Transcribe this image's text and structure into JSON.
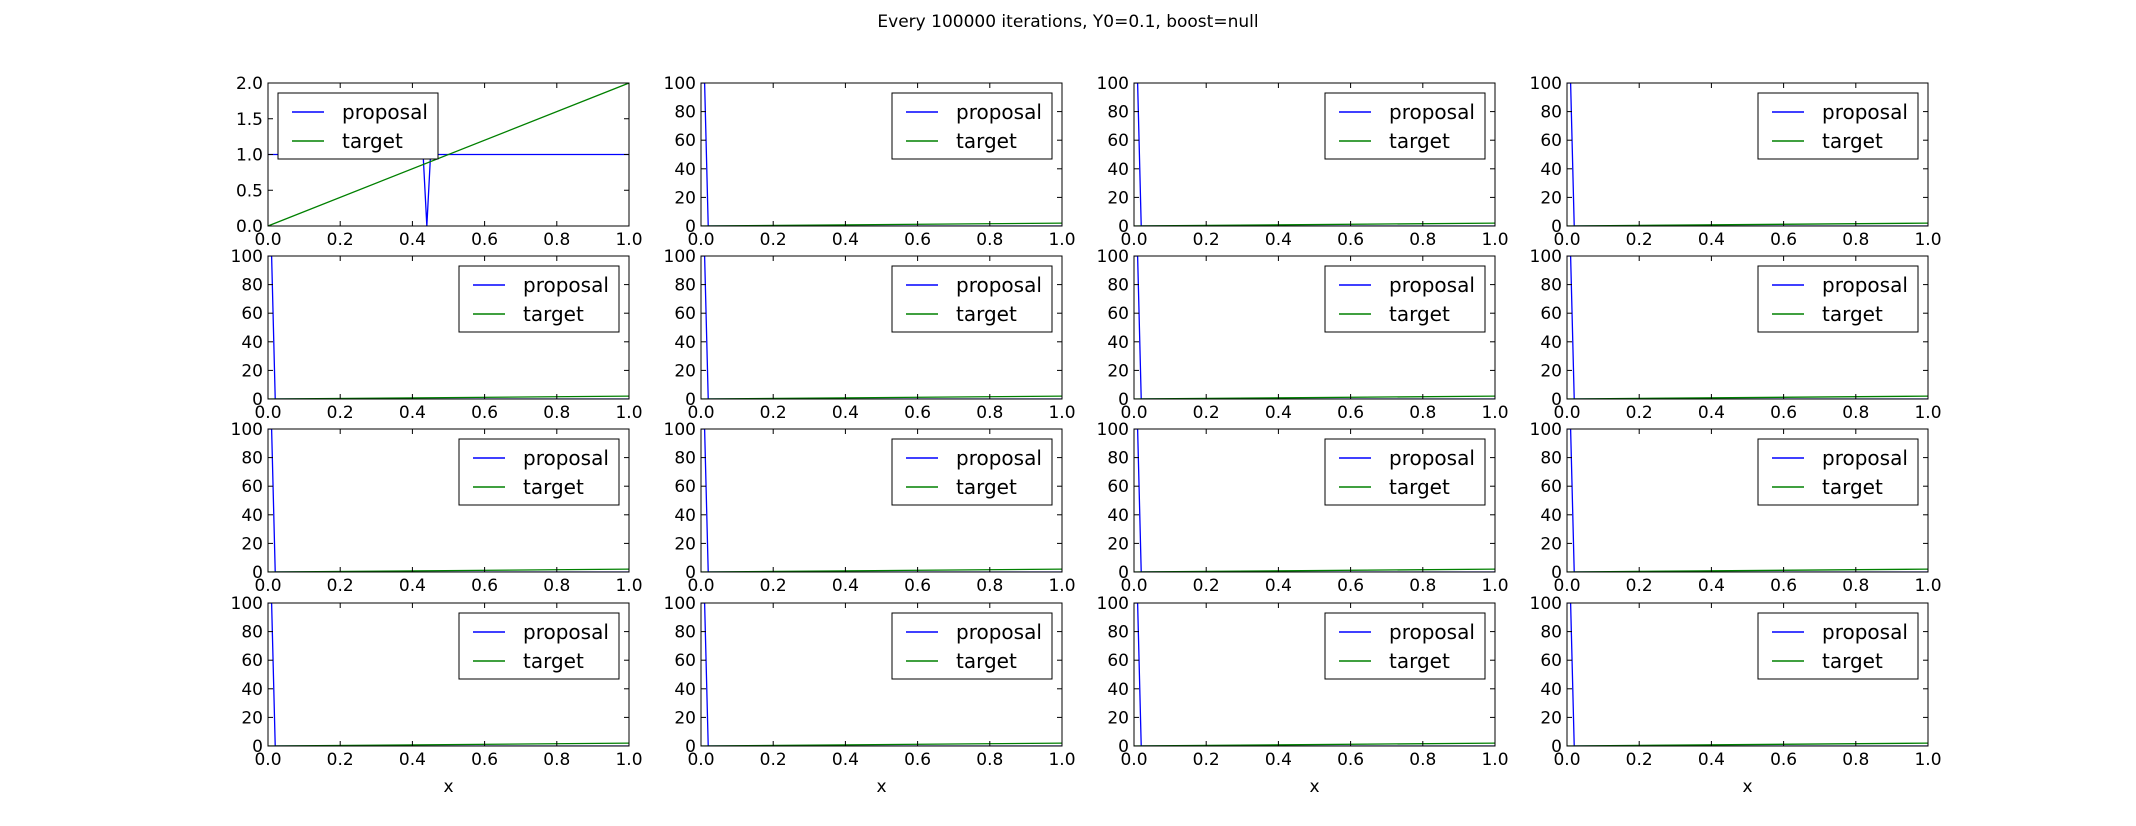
{
  "title": "Every 100000 iterations, Y0=0.1, boost=null",
  "colors": {
    "proposal": "#0000ff",
    "target": "#008000"
  },
  "chart_data": {
    "type": "line",
    "layout": "4x4 grid of line charts",
    "legend_labels": [
      "proposal",
      "target"
    ],
    "xlabel_bottom_row": "x",
    "xlim": [
      0,
      1
    ],
    "x_ticks": [
      "0.0",
      "0.2",
      "0.4",
      "0.6",
      "0.8",
      "1.0"
    ],
    "grid": false,
    "panels": [
      {
        "ylim": [
          0,
          2
        ],
        "y_ticks": [
          "0.0",
          "0.5",
          "1.0",
          "1.5",
          "2.0"
        ],
        "legend_position": "upper-left",
        "series": [
          {
            "name": "proposal",
            "x": [
              0,
              0.42,
              0.43,
              0.44,
              0.45,
              0.46,
              1.0
            ],
            "y": [
              1.0,
              1.0,
              0.97,
              0.0,
              0.97,
              1.0,
              1.0
            ]
          },
          {
            "name": "target",
            "x": [
              0,
              1
            ],
            "y": [
              0,
              2
            ]
          }
        ]
      },
      {
        "ylim": [
          0,
          100
        ],
        "y_ticks": [
          "0",
          "20",
          "40",
          "60",
          "80",
          "100"
        ],
        "legend_position": "upper-right",
        "series": [
          {
            "name": "proposal",
            "x": [
              0,
              0.01,
              0.02,
              1.0
            ],
            "y": [
              100,
              100,
              0,
              0
            ]
          },
          {
            "name": "target",
            "x": [
              0,
              1
            ],
            "y": [
              0,
              2
            ]
          }
        ]
      },
      {
        "ylim": [
          0,
          100
        ],
        "y_ticks": [
          "0",
          "20",
          "40",
          "60",
          "80",
          "100"
        ],
        "legend_position": "upper-right",
        "series": [
          {
            "name": "proposal",
            "x": [
              0,
              0.01,
              0.02,
              1.0
            ],
            "y": [
              100,
              100,
              0,
              0
            ]
          },
          {
            "name": "target",
            "x": [
              0,
              1
            ],
            "y": [
              0,
              2
            ]
          }
        ]
      },
      {
        "ylim": [
          0,
          100
        ],
        "y_ticks": [
          "0",
          "20",
          "40",
          "60",
          "80",
          "100"
        ],
        "legend_position": "upper-right",
        "series": [
          {
            "name": "proposal",
            "x": [
              0,
              0.01,
              0.02,
              1.0
            ],
            "y": [
              100,
              100,
              0,
              0
            ]
          },
          {
            "name": "target",
            "x": [
              0,
              1
            ],
            "y": [
              0,
              2
            ]
          }
        ]
      },
      {
        "ylim": [
          0,
          100
        ],
        "y_ticks": [
          "0",
          "20",
          "40",
          "60",
          "80",
          "100"
        ],
        "legend_position": "upper-right",
        "series": [
          {
            "name": "proposal",
            "x": [
              0,
              0.01,
              0.02,
              1.0
            ],
            "y": [
              100,
              100,
              0,
              0
            ]
          },
          {
            "name": "target",
            "x": [
              0,
              1
            ],
            "y": [
              0,
              2
            ]
          }
        ]
      },
      {
        "ylim": [
          0,
          100
        ],
        "y_ticks": [
          "0",
          "20",
          "40",
          "60",
          "80",
          "100"
        ],
        "legend_position": "upper-right",
        "series": [
          {
            "name": "proposal",
            "x": [
              0,
              0.01,
              0.02,
              1.0
            ],
            "y": [
              100,
              100,
              0,
              0
            ]
          },
          {
            "name": "target",
            "x": [
              0,
              1
            ],
            "y": [
              0,
              2
            ]
          }
        ]
      },
      {
        "ylim": [
          0,
          100
        ],
        "y_ticks": [
          "0",
          "20",
          "40",
          "60",
          "80",
          "100"
        ],
        "legend_position": "upper-right",
        "series": [
          {
            "name": "proposal",
            "x": [
              0,
              0.01,
              0.02,
              1.0
            ],
            "y": [
              100,
              100,
              0,
              0
            ]
          },
          {
            "name": "target",
            "x": [
              0,
              1
            ],
            "y": [
              0,
              2
            ]
          }
        ]
      },
      {
        "ylim": [
          0,
          100
        ],
        "y_ticks": [
          "0",
          "20",
          "40",
          "60",
          "80",
          "100"
        ],
        "legend_position": "upper-right",
        "series": [
          {
            "name": "proposal",
            "x": [
              0,
              0.01,
              0.02,
              1.0
            ],
            "y": [
              100,
              100,
              0,
              0
            ]
          },
          {
            "name": "target",
            "x": [
              0,
              1
            ],
            "y": [
              0,
              2
            ]
          }
        ]
      },
      {
        "ylim": [
          0,
          100
        ],
        "y_ticks": [
          "0",
          "20",
          "40",
          "60",
          "80",
          "100"
        ],
        "legend_position": "upper-right",
        "series": [
          {
            "name": "proposal",
            "x": [
              0,
              0.01,
              0.02,
              1.0
            ],
            "y": [
              100,
              100,
              0,
              0
            ]
          },
          {
            "name": "target",
            "x": [
              0,
              1
            ],
            "y": [
              0,
              2
            ]
          }
        ]
      },
      {
        "ylim": [
          0,
          100
        ],
        "y_ticks": [
          "0",
          "20",
          "40",
          "60",
          "80",
          "100"
        ],
        "legend_position": "upper-right",
        "series": [
          {
            "name": "proposal",
            "x": [
              0,
              0.01,
              0.02,
              1.0
            ],
            "y": [
              100,
              100,
              0,
              0
            ]
          },
          {
            "name": "target",
            "x": [
              0,
              1
            ],
            "y": [
              0,
              2
            ]
          }
        ]
      },
      {
        "ylim": [
          0,
          100
        ],
        "y_ticks": [
          "0",
          "20",
          "40",
          "60",
          "80",
          "100"
        ],
        "legend_position": "upper-right",
        "series": [
          {
            "name": "proposal",
            "x": [
              0,
              0.01,
              0.02,
              1.0
            ],
            "y": [
              100,
              100,
              0,
              0
            ]
          },
          {
            "name": "target",
            "x": [
              0,
              1
            ],
            "y": [
              0,
              2
            ]
          }
        ]
      },
      {
        "ylim": [
          0,
          100
        ],
        "y_ticks": [
          "0",
          "20",
          "40",
          "60",
          "80",
          "100"
        ],
        "legend_position": "upper-right",
        "series": [
          {
            "name": "proposal",
            "x": [
              0,
              0.01,
              0.02,
              1.0
            ],
            "y": [
              100,
              100,
              0,
              0
            ]
          },
          {
            "name": "target",
            "x": [
              0,
              1
            ],
            "y": [
              0,
              2
            ]
          }
        ]
      },
      {
        "ylim": [
          0,
          100
        ],
        "y_ticks": [
          "0",
          "20",
          "40",
          "60",
          "80",
          "100"
        ],
        "legend_position": "upper-right",
        "series": [
          {
            "name": "proposal",
            "x": [
              0,
              0.01,
              0.02,
              1.0
            ],
            "y": [
              100,
              100,
              0,
              0
            ]
          },
          {
            "name": "target",
            "x": [
              0,
              1
            ],
            "y": [
              0,
              2
            ]
          }
        ]
      },
      {
        "ylim": [
          0,
          100
        ],
        "y_ticks": [
          "0",
          "20",
          "40",
          "60",
          "80",
          "100"
        ],
        "legend_position": "upper-right",
        "series": [
          {
            "name": "proposal",
            "x": [
              0,
              0.01,
              0.02,
              1.0
            ],
            "y": [
              100,
              100,
              0,
              0
            ]
          },
          {
            "name": "target",
            "x": [
              0,
              1
            ],
            "y": [
              0,
              2
            ]
          }
        ]
      },
      {
        "ylim": [
          0,
          100
        ],
        "y_ticks": [
          "0",
          "20",
          "40",
          "60",
          "80",
          "100"
        ],
        "legend_position": "upper-right",
        "series": [
          {
            "name": "proposal",
            "x": [
              0,
              0.01,
              0.02,
              1.0
            ],
            "y": [
              100,
              100,
              0,
              0
            ]
          },
          {
            "name": "target",
            "x": [
              0,
              1
            ],
            "y": [
              0,
              2
            ]
          }
        ]
      },
      {
        "ylim": [
          0,
          100
        ],
        "y_ticks": [
          "0",
          "20",
          "40",
          "60",
          "80",
          "100"
        ],
        "legend_position": "upper-right",
        "series": [
          {
            "name": "proposal",
            "x": [
              0,
              0.01,
              0.02,
              1.0
            ],
            "y": [
              100,
              100,
              0,
              0
            ]
          },
          {
            "name": "target",
            "x": [
              0,
              1
            ],
            "y": [
              0,
              2
            ]
          }
        ]
      }
    ]
  }
}
